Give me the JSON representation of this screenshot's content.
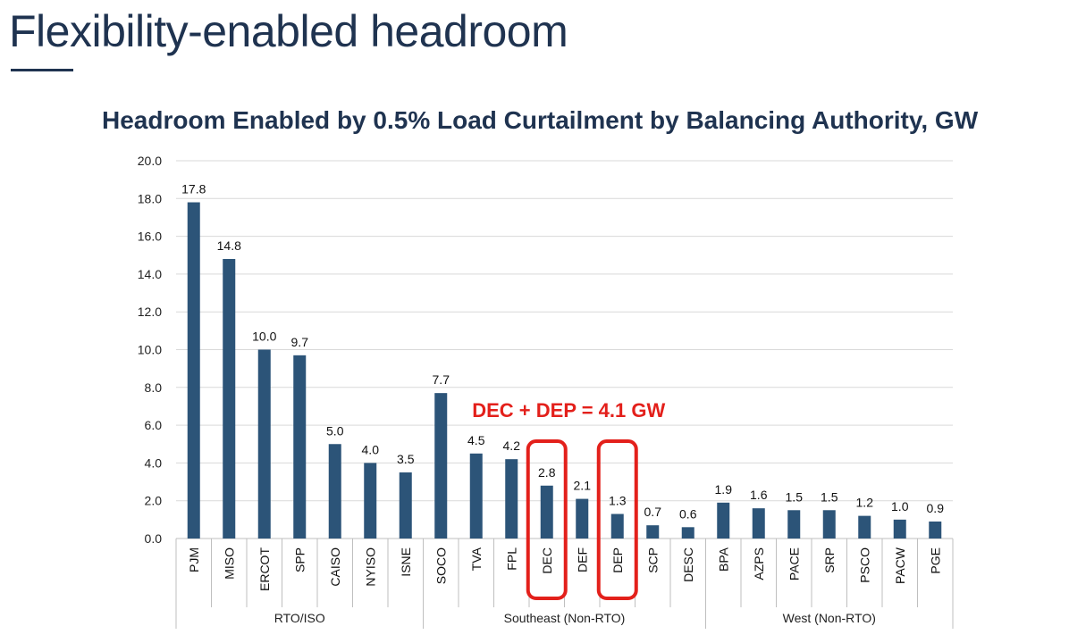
{
  "page": {
    "title": "Flexibility-enabled headroom"
  },
  "chart_data": {
    "type": "bar",
    "title": "Headroom Enabled by 0.5% Load Curtailment by Balancing Authority, GW",
    "xlabel": "",
    "ylabel": "",
    "ylim": [
      0,
      20
    ],
    "y_ticks": [
      "0.0",
      "2.0",
      "4.0",
      "6.0",
      "8.0",
      "10.0",
      "12.0",
      "14.0",
      "16.0",
      "18.0",
      "20.0"
    ],
    "grid": true,
    "bar_color": "#2c5478",
    "highlight_color": "#e3201b",
    "categories": [
      "PJM",
      "MISO",
      "ERCOT",
      "SPP",
      "CAISO",
      "NYISO",
      "ISNE",
      "SOCO",
      "TVA",
      "FPL",
      "DEC",
      "DEF",
      "DEP",
      "SCP",
      "DESC",
      "BPA",
      "AZPS",
      "PACE",
      "SRP",
      "PSCO",
      "PACW",
      "PGE"
    ],
    "values": [
      17.8,
      14.8,
      10.0,
      9.7,
      5.0,
      4.0,
      3.5,
      7.7,
      4.5,
      4.2,
      2.8,
      2.1,
      1.3,
      0.7,
      0.6,
      1.9,
      1.6,
      1.5,
      1.5,
      1.2,
      1.0,
      0.9
    ],
    "value_labels": [
      "17.8",
      "14.8",
      "10.0",
      "9.7",
      "5.0",
      "4.0",
      "3.5",
      "7.7",
      "4.5",
      "4.2",
      "2.8",
      "2.1",
      "1.3",
      "0.7",
      "0.6",
      "1.9",
      "1.6",
      "1.5",
      "1.5",
      "1.2",
      "1.0",
      "0.9"
    ],
    "groups": [
      {
        "name": "RTO/ISO",
        "count": 7
      },
      {
        "name": "Southeast (Non-RTO)",
        "count": 8
      },
      {
        "name": "West (Non-RTO)",
        "count": 7
      }
    ],
    "highlighted": [
      "DEC",
      "DEP"
    ],
    "annotation": "DEC + DEP = 4.1 GW"
  }
}
